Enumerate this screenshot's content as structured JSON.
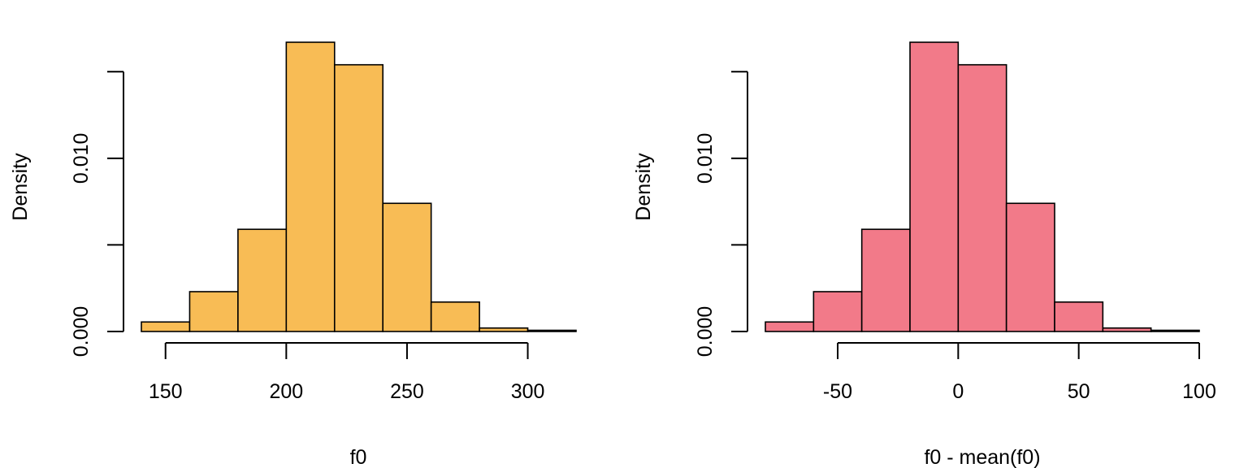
{
  "chart_data": [
    {
      "type": "bar",
      "subtype": "histogram",
      "title": "",
      "xlabel": "f0",
      "ylabel": "Density",
      "bar_color": "#F8BC55",
      "bins": [
        {
          "x0": 140,
          "x1": 160,
          "value": 0.00055
        },
        {
          "x0": 160,
          "x1": 180,
          "value": 0.0023
        },
        {
          "x0": 180,
          "x1": 200,
          "value": 0.0059
        },
        {
          "x0": 200,
          "x1": 220,
          "value": 0.0167
        },
        {
          "x0": 220,
          "x1": 240,
          "value": 0.0154
        },
        {
          "x0": 240,
          "x1": 260,
          "value": 0.0074
        },
        {
          "x0": 260,
          "x1": 280,
          "value": 0.0017
        },
        {
          "x0": 280,
          "x1": 300,
          "value": 0.0002
        },
        {
          "x0": 300,
          "x1": 320,
          "value": 7e-05
        }
      ],
      "xlim": [
        140,
        320
      ],
      "ylim": [
        0,
        0.0167
      ],
      "x_ticks": [
        150,
        200,
        250,
        300
      ],
      "x_tick_labels": [
        "150",
        "200",
        "250",
        "300"
      ],
      "y_ticks": [
        0,
        0.005,
        0.01,
        0.015
      ],
      "y_tick_labels": [
        "0.000",
        "",
        "0.010",
        ""
      ]
    },
    {
      "type": "bar",
      "subtype": "histogram",
      "title": "",
      "xlabel": "f0 - mean(f0)",
      "ylabel": "Density",
      "bar_color": "#F27A89",
      "bins": [
        {
          "x0": -80,
          "x1": -60,
          "value": 0.00055
        },
        {
          "x0": -60,
          "x1": -40,
          "value": 0.0023
        },
        {
          "x0": -40,
          "x1": -20,
          "value": 0.0059
        },
        {
          "x0": -20,
          "x1": 0,
          "value": 0.0167
        },
        {
          "x0": 0,
          "x1": 20,
          "value": 0.0154
        },
        {
          "x0": 20,
          "x1": 40,
          "value": 0.0074
        },
        {
          "x0": 40,
          "x1": 60,
          "value": 0.0017
        },
        {
          "x0": 60,
          "x1": 80,
          "value": 0.0002
        },
        {
          "x0": 80,
          "x1": 100,
          "value": 7e-05
        }
      ],
      "xlim": [
        -80,
        100
      ],
      "ylim": [
        0,
        0.0167
      ],
      "x_ticks": [
        -50,
        0,
        50,
        100
      ],
      "x_tick_labels": [
        "-50",
        "0",
        "50",
        "100"
      ],
      "y_ticks": [
        0,
        0.005,
        0.01,
        0.015
      ],
      "y_tick_labels": [
        "0.000",
        "",
        "0.010",
        ""
      ]
    }
  ]
}
